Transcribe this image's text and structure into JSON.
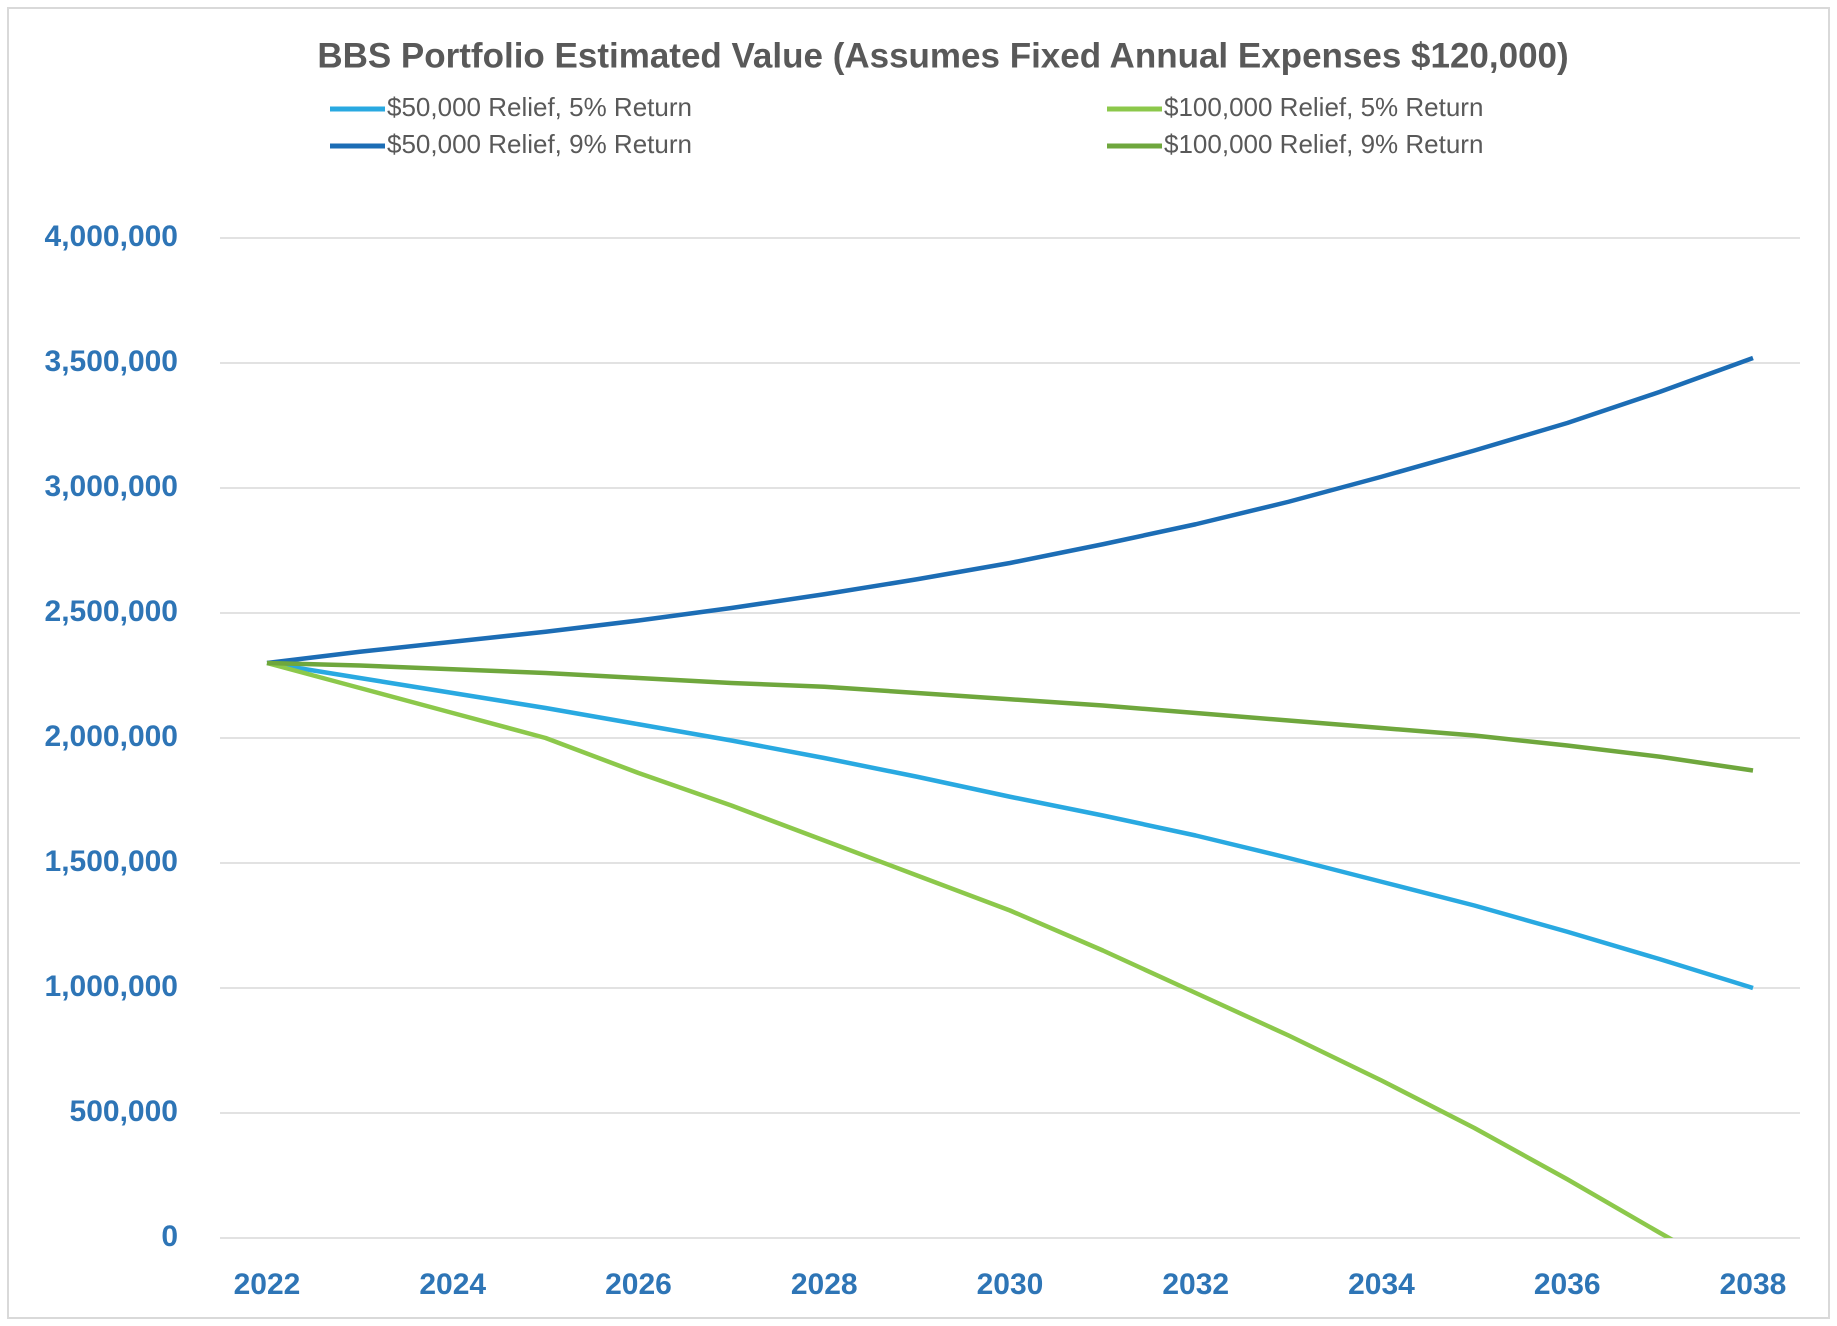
{
  "chart_data": {
    "type": "line",
    "title": "BBS Portfolio Estimated Value (Assumes Fixed Annual Expenses $120,000)",
    "x": [
      2022,
      2023,
      2024,
      2025,
      2026,
      2027,
      2028,
      2029,
      2030,
      2031,
      2032,
      2033,
      2034,
      2035,
      2036,
      2037,
      2038
    ],
    "series": [
      {
        "name": "$50,000 Relief, 5% Return",
        "color": "#29a9e1",
        "values": [
          2300000,
          2240000,
          2180000,
          2120000,
          2055000,
          1990000,
          1920000,
          1845000,
          1765000,
          1690000,
          1610000,
          1520000,
          1425000,
          1330000,
          1225000,
          1115000,
          1000000
        ]
      },
      {
        "name": "$50,000 Relief, 9% Return",
        "color": "#1c6db5",
        "values": [
          2300000,
          2345000,
          2385000,
          2425000,
          2470000,
          2520000,
          2575000,
          2635000,
          2700000,
          2775000,
          2855000,
          2945000,
          3045000,
          3150000,
          3260000,
          3385000,
          3520000
        ]
      },
      {
        "name": "$100,000 Relief, 5% Return",
        "color": "#8cc84b",
        "values": [
          2300000,
          2200000,
          2100000,
          2000000,
          1860000,
          1730000,
          1590000,
          1450000,
          1310000,
          1150000,
          980000,
          810000,
          630000,
          440000,
          235000,
          20000,
          -190000
        ]
      },
      {
        "name": "$100,000 Relief, 9% Return",
        "color": "#6fa73d",
        "values": [
          2300000,
          2290000,
          2275000,
          2260000,
          2240000,
          2220000,
          2205000,
          2180000,
          2155000,
          2130000,
          2100000,
          2070000,
          2040000,
          2010000,
          1970000,
          1925000,
          1870000
        ]
      }
    ],
    "xlim": [
      2022,
      2038
    ],
    "xticks": [
      2022,
      2024,
      2026,
      2028,
      2030,
      2032,
      2034,
      2036,
      2038
    ],
    "ylim": [
      0,
      4000000
    ],
    "yticks": [
      0,
      {
        "value": 500000,
        "label": "500,000"
      },
      {
        "value": 1000000,
        "label": "1,000,000"
      },
      {
        "value": 1500000,
        "label": "1,500,000"
      },
      {
        "value": 2000000,
        "label": "2,000,000"
      },
      {
        "value": 2500000,
        "label": "2,500,000"
      },
      {
        "value": 3000000,
        "label": "3,000,000"
      },
      {
        "value": 3500000,
        "label": "3,500,000"
      },
      {
        "value": 4000000,
        "label": "4,000,000"
      }
    ],
    "grid": true,
    "legend": "top"
  }
}
